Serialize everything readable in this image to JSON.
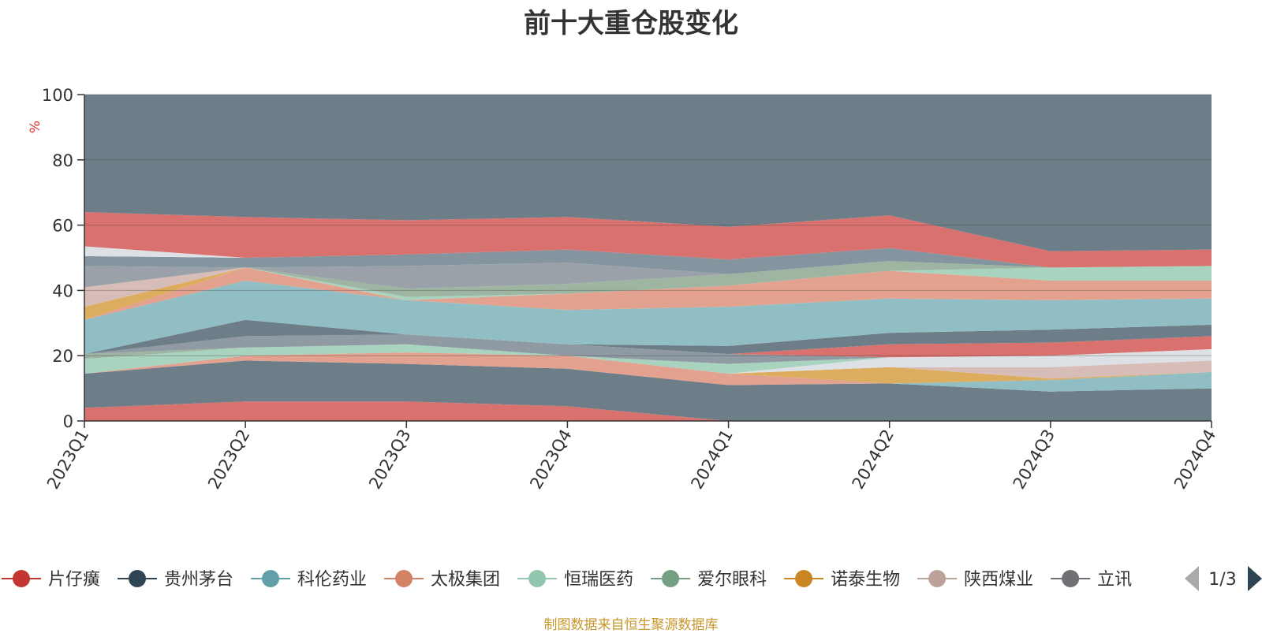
{
  "footer_note": "制图数据来自恒生聚源数据库",
  "pager": {
    "text": "1/3",
    "prev_icon": "triangle-left-icon",
    "next_icon": "triangle-right-icon"
  },
  "chart_data": {
    "type": "area",
    "title": "前十大重仓股变化",
    "ylabel": "%",
    "ylim": [
      0,
      100
    ],
    "yticks": [
      0,
      20,
      40,
      60,
      80,
      100
    ],
    "categories": [
      "2023Q1",
      "2023Q2",
      "2023Q3",
      "2023Q4",
      "2024Q1",
      "2024Q2",
      "2024Q3",
      "2024Q4"
    ],
    "grid": true,
    "legend_position": "bottom",
    "bands": [
      {
        "color": "#d9716f",
        "lower": [
          0,
          0,
          0,
          0,
          0,
          0,
          0,
          0
        ],
        "upper": [
          4,
          6,
          6,
          4.5,
          0,
          0,
          0,
          0
        ]
      },
      {
        "color": "#6e7e89",
        "lower": [
          4,
          6,
          6,
          4.5,
          0,
          0,
          0,
          0
        ],
        "upper": [
          14.5,
          18.5,
          17.5,
          16,
          11,
          11.5,
          9,
          10
        ]
      },
      {
        "color": "#90bec4",
        "lower": [
          14.5,
          18.5,
          17.5,
          16,
          11,
          11.5,
          9,
          10
        ],
        "upper": [
          14.5,
          18.5,
          17.5,
          16,
          11,
          11.5,
          12.5,
          15
        ]
      },
      {
        "color": "#e2a28f",
        "lower": [
          14.5,
          18.5,
          17.5,
          16,
          11,
          11.5,
          12.5,
          15
        ],
        "upper": [
          14.5,
          20,
          21,
          20,
          14.5,
          11.5,
          12.5,
          15
        ]
      },
      {
        "color": "#ddad5f",
        "lower": [
          14.5,
          20,
          21,
          20,
          14.5,
          11.5,
          12.5,
          15
        ],
        "upper": [
          14.5,
          20,
          21,
          20,
          14.5,
          16.5,
          13,
          15
        ]
      },
      {
        "color": "#d6bdb7",
        "lower": [
          14.5,
          20,
          21,
          20,
          14.5,
          16.5,
          13,
          15
        ],
        "upper": [
          14.5,
          20,
          21,
          20,
          14.5,
          16.5,
          16.5,
          18.5
        ]
      },
      {
        "color": "#dde0e5",
        "lower": [
          14.5,
          20,
          21,
          20,
          14.5,
          16.5,
          16.5,
          18.5
        ],
        "upper": [
          14.5,
          20,
          21,
          20,
          14.5,
          19.5,
          20,
          22
        ]
      },
      {
        "color": "#a8d3be",
        "lower": [
          14.5,
          20,
          21,
          20,
          14.5,
          19.5,
          20,
          22
        ],
        "upper": [
          19,
          22.5,
          23.5,
          20,
          17.5,
          19.5,
          20,
          22
        ]
      },
      {
        "color": "#9eb5a2",
        "lower": [
          19,
          22.5,
          23.5,
          20,
          17.5,
          19.5,
          20,
          22
        ],
        "upper": [
          20.5,
          22.5,
          23.5,
          20,
          17.5,
          19.5,
          20,
          22
        ]
      },
      {
        "color": "#8f9aa3",
        "lower": [
          20.5,
          22.5,
          23.5,
          20,
          17.5,
          19.5,
          20,
          22
        ],
        "upper": [
          20.5,
          26,
          26.5,
          23.5,
          20.5,
          19.5,
          20,
          22
        ]
      },
      {
        "color": "#d9716f",
        "lower": [
          20.5,
          26,
          26.5,
          23.5,
          20.5,
          19.5,
          20,
          22
        ],
        "upper": [
          20.5,
          26,
          26.5,
          23.5,
          20.5,
          23.5,
          24,
          26
        ]
      },
      {
        "color": "#6e7e89",
        "lower": [
          20.5,
          26,
          26.5,
          23.5,
          20.5,
          23.5,
          24,
          26
        ],
        "upper": [
          20.5,
          31,
          26.5,
          23.5,
          23,
          27,
          28,
          29.5
        ]
      },
      {
        "color": "#90bec4",
        "lower": [
          20.5,
          31,
          26.5,
          23.5,
          23,
          27,
          28,
          29.5
        ],
        "upper": [
          31,
          43,
          37,
          34,
          35,
          37.5,
          37,
          37.5
        ]
      },
      {
        "color": "#e2a28f",
        "lower": [
          31,
          43,
          37,
          34,
          35,
          37.5,
          37,
          37.5
        ],
        "upper": [
          31,
          47,
          37,
          39,
          41.5,
          46,
          43,
          43
        ]
      },
      {
        "color": "#ddad5f",
        "lower": [
          31,
          47,
          37,
          39,
          41.5,
          46,
          43,
          43
        ],
        "upper": [
          35,
          47,
          37,
          39,
          41.5,
          46,
          43,
          43
        ]
      },
      {
        "color": "#a8d3be",
        "lower": [
          35,
          47,
          37,
          39,
          41.5,
          46,
          43,
          43
        ],
        "upper": [
          35,
          47,
          38,
          39,
          41.5,
          46,
          47,
          47.5
        ]
      },
      {
        "color": "#9eb5a2",
        "lower": [
          35,
          47,
          38,
          39,
          41.5,
          46,
          47,
          47.5
        ],
        "upper": [
          35,
          47,
          40.5,
          42,
          45,
          49,
          47,
          47.5
        ]
      },
      {
        "color": "#d6bdb7",
        "lower": [
          35,
          47,
          40.5,
          42,
          45,
          49,
          47,
          47.5
        ],
        "upper": [
          41,
          47,
          40.5,
          42,
          45,
          49,
          47,
          47.5
        ]
      },
      {
        "color": "#9aa1a8",
        "lower": [
          41,
          47,
          40.5,
          42,
          45,
          49,
          47,
          47.5
        ],
        "upper": [
          47.5,
          47,
          47.5,
          48.5,
          45,
          49,
          47,
          47.5
        ]
      },
      {
        "color": "#8595a0",
        "lower": [
          47.5,
          47,
          47.5,
          48.5,
          45,
          49,
          47,
          47.5
        ],
        "upper": [
          50.5,
          50,
          51,
          52.5,
          49.5,
          53,
          47,
          47.5
        ]
      },
      {
        "color": "#dde0e5",
        "lower": [
          50.5,
          50,
          51,
          52.5,
          49.5,
          53,
          47,
          47.5
        ],
        "upper": [
          53.5,
          50,
          51,
          52.5,
          49.5,
          53,
          47,
          47.5
        ]
      },
      {
        "color": "#d9716f",
        "lower": [
          53.5,
          50,
          51,
          52.5,
          49.5,
          53,
          47,
          47.5
        ],
        "upper": [
          64,
          62.5,
          61.5,
          62.5,
          59.5,
          63,
          52,
          52.5
        ]
      },
      {
        "color": "#6e7e89",
        "lower": [
          64,
          62.5,
          61.5,
          62.5,
          59.5,
          63,
          52,
          52.5
        ],
        "upper": [
          100,
          100,
          100,
          100,
          100,
          100,
          100,
          100
        ]
      }
    ],
    "legend": [
      {
        "name": "片仔癀",
        "color": "#c23531"
      },
      {
        "name": "贵州茅台",
        "color": "#2f4554"
      },
      {
        "name": "科伦药业",
        "color": "#61a0a8"
      },
      {
        "name": "太极集团",
        "color": "#d48265"
      },
      {
        "name": "恒瑞医药",
        "color": "#91c7ae"
      },
      {
        "name": "爱尔眼科",
        "color": "#749f83"
      },
      {
        "name": "诺泰生物",
        "color": "#ca8622"
      },
      {
        "name": "陕西煤业",
        "color": "#bda29a"
      },
      {
        "name": "立讯",
        "color": "#6e7074"
      }
    ]
  }
}
